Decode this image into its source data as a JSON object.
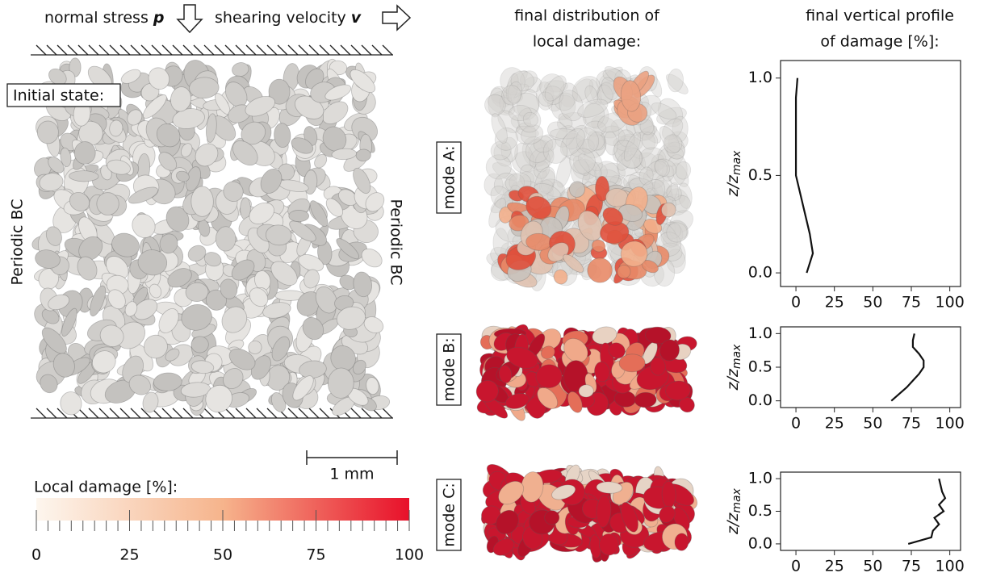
{
  "header": {
    "stress": "normal stress",
    "stress_symbol": "p",
    "velocity": "shearing velocity",
    "velocity_symbol": "v"
  },
  "initial_state": "Initial state:",
  "periodic_left": "Periodic BC",
  "periodic_right": "Periodic BC",
  "scale_bar": "1 mm",
  "colorbar": {
    "label": "Local damage [%]:",
    "range": [
      0,
      100
    ],
    "ticks": [
      0,
      25,
      50,
      75,
      100
    ],
    "colors": [
      "#fdf6ee",
      "#f6b48c",
      "#e8102a"
    ]
  },
  "middle_title": [
    "final distribution of",
    "local damage:"
  ],
  "right_title": [
    "final vertical profile",
    "of damage [%]:"
  ],
  "chart_data": [
    {
      "type": "line",
      "title": "mode A:",
      "ylabel": "z/z",
      "ylabel_sub": "max",
      "color": "#111111",
      "x": [
        7,
        11,
        9,
        6,
        3,
        0,
        0,
        0,
        0,
        0,
        1
      ],
      "values": [
        0,
        0.1,
        0.2,
        0.3,
        0.4,
        0.5,
        0.6,
        0.7,
        0.8,
        0.9,
        1
      ],
      "xlim": [
        -10,
        107
      ],
      "xticks": [
        0,
        25,
        50,
        75,
        100
      ],
      "ylim": [
        -0.07,
        1.09
      ],
      "yticks": [
        {
          "value": 0,
          "label": "0.0"
        },
        {
          "value": 0.5,
          "label": "0.5"
        },
        {
          "value": 1,
          "label": "1.0"
        }
      ]
    },
    {
      "type": "line",
      "title": "mode B:",
      "ylabel": "z/z",
      "ylabel_sub": "max",
      "color": "#111111",
      "x": [
        62,
        67,
        72,
        76,
        80,
        83,
        83,
        80,
        76,
        76,
        77
      ],
      "values": [
        0,
        0.1,
        0.2,
        0.3,
        0.4,
        0.5,
        0.6,
        0.7,
        0.8,
        0.9,
        1
      ],
      "xlim": [
        -10,
        107
      ],
      "xticks": [
        0,
        25,
        50,
        75,
        100
      ],
      "ylim": [
        -0.1,
        1.1
      ],
      "yticks": [
        {
          "value": 0,
          "label": "0.0"
        },
        {
          "value": 0.5,
          "label": "0.5"
        },
        {
          "value": 1,
          "label": "1.0"
        }
      ]
    },
    {
      "type": "line",
      "title": "mode C:",
      "ylabel": "z/z",
      "ylabel_sub": "max",
      "color": "#111111",
      "x": [
        73,
        88,
        89,
        93,
        90,
        96,
        93,
        97,
        95,
        94,
        93
      ],
      "values": [
        0,
        0.1,
        0.2,
        0.3,
        0.4,
        0.5,
        0.6,
        0.7,
        0.8,
        0.9,
        1
      ],
      "xlim": [
        -10,
        107
      ],
      "xticks": [
        0,
        25,
        50,
        75,
        100
      ],
      "ylim": [
        -0.1,
        1.1
      ],
      "yticks": [
        {
          "value": 0,
          "label": "0.0"
        },
        {
          "value": 0.5,
          "label": "0.5"
        },
        {
          "value": 1,
          "label": "1.0"
        }
      ]
    }
  ]
}
